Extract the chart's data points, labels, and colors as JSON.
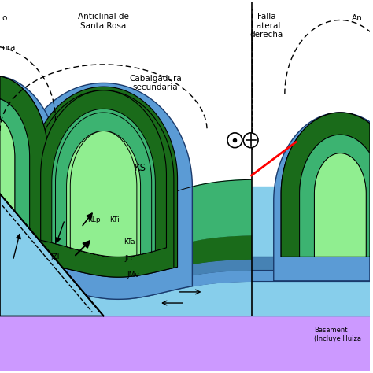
{
  "colors": {
    "light_blue": "#87CEEB",
    "medium_blue": "#5B9BD5",
    "dark_blue": "#1A3A6B",
    "light_green": "#90EE90",
    "green": "#3CB371",
    "dark_green": "#1A6B1A",
    "purple": "#CC99FF",
    "red": "#FF0000",
    "white": "#ffffff",
    "black": "#000000"
  },
  "labels": {
    "anticline": "Anticlinal de\nSanta Rosa",
    "falla": "Falla\nLateral\nderecha",
    "cabalgadura": "Cabalgadura\nsecundaria",
    "KS": "KS",
    "KLp": "KLp",
    "KTi": "KTi",
    "KTa": "KTa",
    "JLc": "JLc",
    "JMv": "JMv",
    "JZl": "JZl",
    "basement": "Basament\n(Incluye Huiza",
    "left_o": "o",
    "ura": "ura",
    "An": "An"
  }
}
